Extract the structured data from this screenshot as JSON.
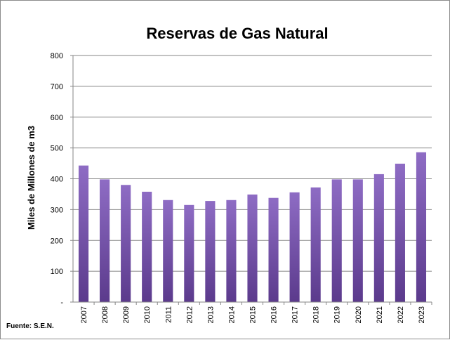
{
  "chart_data": {
    "type": "bar",
    "title": "Reservas de Gas Natural",
    "ylabel": "Miles  de  Millones de  m3",
    "xlabel": "",
    "categories": [
      "2007",
      "2008",
      "2009",
      "2010",
      "2011",
      "2012",
      "2013",
      "2014",
      "2015",
      "2016",
      "2017",
      "2018",
      "2019",
      "2020",
      "2021",
      "2022",
      "2023"
    ],
    "values": [
      443,
      398,
      380,
      358,
      331,
      315,
      328,
      331,
      349,
      338,
      356,
      372,
      398,
      398,
      415,
      449,
      486
    ],
    "ylim": [
      0,
      800
    ],
    "yticks": [
      0,
      100,
      200,
      300,
      400,
      500,
      600,
      700,
      800
    ],
    "ytick_labels": [
      "-",
      "100",
      "200",
      "300",
      "400",
      "500",
      "600",
      "700",
      "800"
    ],
    "grid": true,
    "bar_color_light": "#8e6cc4",
    "bar_color_dark": "#5b3a8c",
    "source_note": "Fuente: S.E.N."
  }
}
